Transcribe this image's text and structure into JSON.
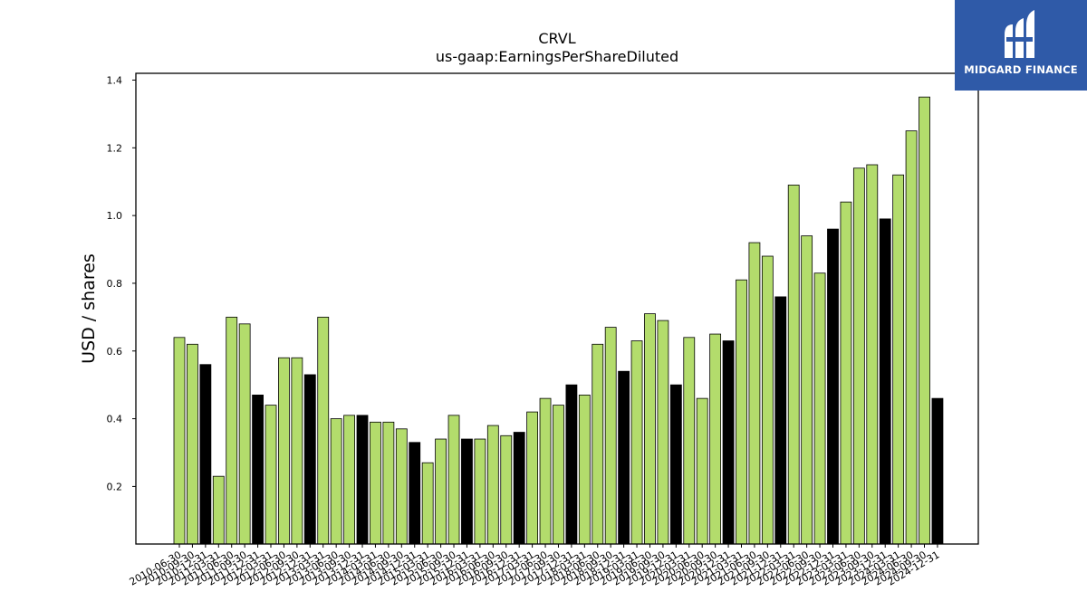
{
  "chart_data": {
    "type": "bar",
    "title": "CRVL",
    "subtitle": "us-gaap:EarningsPerShareDiluted",
    "xlabel": "",
    "ylabel": "USD / shares",
    "ylim": [
      0.03,
      1.42
    ],
    "yticks": [
      0.2,
      0.4,
      0.6,
      0.8,
      1.0,
      1.2,
      1.4
    ],
    "ytick_labels": [
      "0.2",
      "0.4",
      "0.6",
      "0.8",
      "1.0",
      "1.2",
      "1.4"
    ],
    "grid": false,
    "colors": {
      "quarter": "#b3dc6c",
      "annual": "#000000",
      "edge": "#000000"
    },
    "categories": [
      "2010-06-30",
      "2010-09-30",
      "2010-12-31",
      "2011-03-31",
      "2011-06-30",
      "2011-09-30",
      "2011-12-31",
      "2012-03-31",
      "2012-06-30",
      "2012-09-30",
      "2012-12-31",
      "2013-03-31",
      "2013-06-30",
      "2013-09-30",
      "2013-12-31",
      "2014-03-31",
      "2014-06-30",
      "2014-09-30",
      "2014-12-31",
      "2015-03-31",
      "2015-06-30",
      "2015-09-30",
      "2015-12-31",
      "2016-03-31",
      "2016-06-30",
      "2016-09-30",
      "2016-12-31",
      "2017-03-31",
      "2017-06-30",
      "2017-09-30",
      "2017-12-31",
      "2018-03-31",
      "2018-06-30",
      "2018-09-30",
      "2018-12-31",
      "2019-03-31",
      "2019-06-30",
      "2019-09-30",
      "2019-12-31",
      "2020-03-31",
      "2020-06-30",
      "2020-09-30",
      "2020-12-31",
      "2021-03-31",
      "2021-06-30",
      "2021-09-30",
      "2021-12-31",
      "2022-03-31",
      "2022-06-30",
      "2022-09-30",
      "2022-12-31",
      "2023-03-31",
      "2023-06-30",
      "2023-09-30",
      "2023-12-31",
      "2024-03-31",
      "2024-06-30",
      "2024-09-30",
      "2024-12-31"
    ],
    "values": [
      0.64,
      0.62,
      0.56,
      0.23,
      0.7,
      0.68,
      0.47,
      0.44,
      0.58,
      0.58,
      0.53,
      0.7,
      0.4,
      0.41,
      0.41,
      0.39,
      0.39,
      0.37,
      0.33,
      0.27,
      0.34,
      0.41,
      0.34,
      0.34,
      0.38,
      0.35,
      0.36,
      0.42,
      0.46,
      0.44,
      0.5,
      0.47,
      0.62,
      0.67,
      0.54,
      0.63,
      0.71,
      0.69,
      0.5,
      0.64,
      0.46,
      0.65,
      0.63,
      0.81,
      0.92,
      0.88,
      0.76,
      1.09,
      0.94,
      0.83,
      0.96,
      1.04,
      1.14,
      1.15,
      0.99,
      1.12,
      1.25,
      1.35,
      0.46
    ]
  },
  "logo": {
    "text": "MIDGARD FINANCE",
    "color": "#2f5aa8"
  }
}
